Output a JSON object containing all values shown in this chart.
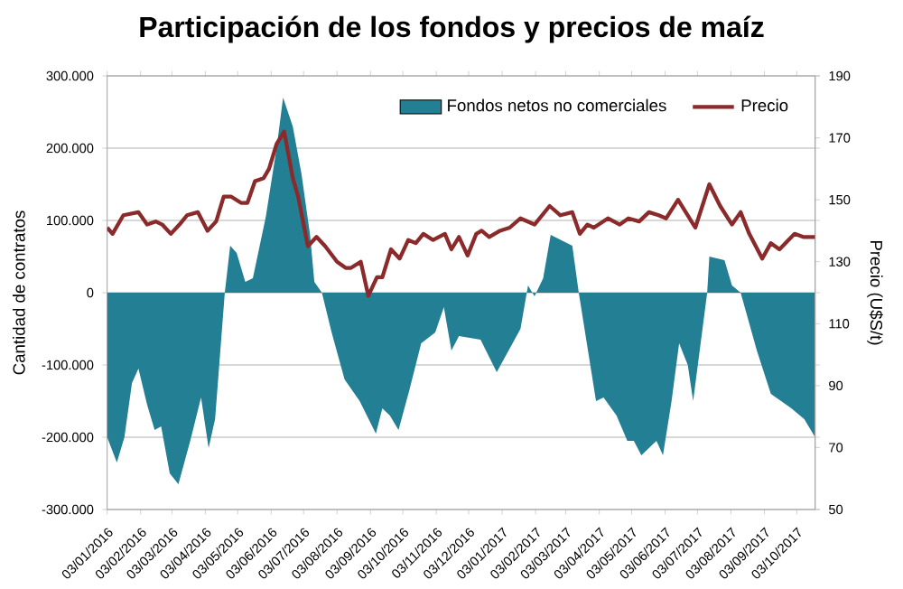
{
  "chart_data": {
    "type": "area",
    "title": "Participación de los fondos y precios de maíz",
    "ylabel": "Cantidad de contratos",
    "y2label": "Precio (U$S/t)",
    "xlim": [
      "2016-01-03",
      "2017-10-20"
    ],
    "xticks": [
      {
        "value": "2016-01-03",
        "label": "03/01/2016"
      },
      {
        "value": "2016-02-03",
        "label": "03/02/2016"
      },
      {
        "value": "2016-03-03",
        "label": "03/03/2016"
      },
      {
        "value": "2016-04-03",
        "label": "03/04/2016"
      },
      {
        "value": "2016-05-03",
        "label": "03/05/2016"
      },
      {
        "value": "2016-06-03",
        "label": "03/06/2016"
      },
      {
        "value": "2016-07-03",
        "label": "03/07/2016"
      },
      {
        "value": "2016-08-03",
        "label": "03/08/2016"
      },
      {
        "value": "2016-09-03",
        "label": "03/09/2016"
      },
      {
        "value": "2016-10-03",
        "label": "03/10/2016"
      },
      {
        "value": "2016-11-03",
        "label": "03/11/2016"
      },
      {
        "value": "2016-12-03",
        "label": "03/12/2016"
      },
      {
        "value": "2017-01-03",
        "label": "03/01/2017"
      },
      {
        "value": "2017-02-03",
        "label": "03/02/2017"
      },
      {
        "value": "2017-03-03",
        "label": "03/03/2017"
      },
      {
        "value": "2017-04-03",
        "label": "03/04/2017"
      },
      {
        "value": "2017-05-03",
        "label": "03/05/2017"
      },
      {
        "value": "2017-06-03",
        "label": "03/06/2017"
      },
      {
        "value": "2017-07-03",
        "label": "03/07/2017"
      },
      {
        "value": "2017-08-03",
        "label": "03/08/2017"
      },
      {
        "value": "2017-09-03",
        "label": "03/09/2017"
      },
      {
        "value": "2017-10-03",
        "label": "03/10/2017"
      }
    ],
    "ylim": [
      -300000,
      300000
    ],
    "yticks": [
      {
        "value": -300000,
        "label": "-300.000"
      },
      {
        "value": -200000,
        "label": "-200.000"
      },
      {
        "value": -100000,
        "label": "-100.000"
      },
      0,
      {
        "value": 100000,
        "label": "100.000"
      },
      {
        "value": 200000,
        "label": "200.000"
      },
      {
        "value": 300000,
        "label": "300.000"
      }
    ],
    "y2lim": [
      50,
      190
    ],
    "y2ticks": [
      50,
      70,
      90,
      110,
      130,
      150,
      170,
      190
    ],
    "grid": "y",
    "legend": "top right",
    "series": [
      {
        "name": "Fondos netos no comerciales",
        "color": "#237f94",
        "x": [
          "2016-01-03",
          "2016-01-12",
          "2016-01-19",
          "2016-01-26",
          "2016-02-01",
          "2016-02-09",
          "2016-02-16",
          "2016-02-22",
          "2016-03-01",
          "2016-03-09",
          "2016-03-20",
          "2016-03-30",
          "2016-04-06",
          "2016-04-12",
          "2016-04-21",
          "2016-04-26",
          "2016-05-02",
          "2016-05-10",
          "2016-05-17",
          "2016-05-29",
          "2016-06-08",
          "2016-06-14",
          "2016-06-23",
          "2016-07-01",
          "2016-07-09",
          "2016-07-13",
          "2016-07-20",
          "2016-07-29",
          "2016-08-10",
          "2016-08-24",
          "2016-09-08",
          "2016-09-14",
          "2016-09-21",
          "2016-09-29",
          "2016-10-09",
          "2016-10-20",
          "2016-11-02",
          "2016-11-10",
          "2016-11-17",
          "2016-11-24",
          "2016-12-14",
          "2016-12-29",
          "2017-01-20",
          "2017-01-27",
          "2017-02-02",
          "2017-02-10",
          "2017-02-17",
          "2017-03-09",
          "2017-03-15",
          "2017-03-31",
          "2017-04-07",
          "2017-04-19",
          "2017-04-29",
          "2017-05-05",
          "2017-05-12",
          "2017-05-26",
          "2017-06-01",
          "2017-06-09",
          "2017-06-16",
          "2017-06-24",
          "2017-06-29",
          "2017-07-12",
          "2017-07-14",
          "2017-07-28",
          "2017-08-04",
          "2017-08-12",
          "2017-08-27",
          "2017-09-09",
          "2017-09-28",
          "2017-10-10",
          "2017-10-20"
        ],
        "values": [
          -200000,
          -235000,
          -200000,
          -125000,
          -105000,
          -155000,
          -190000,
          -185000,
          -250000,
          -265000,
          -205000,
          -145000,
          -215000,
          -175000,
          0,
          65000,
          55000,
          15000,
          20000,
          105000,
          200000,
          270000,
          230000,
          165000,
          80000,
          15000,
          0,
          -55000,
          -120000,
          -150000,
          -195000,
          -160000,
          -170000,
          -190000,
          -135000,
          -70000,
          -55000,
          -20000,
          -80000,
          -60000,
          -65000,
          -110000,
          -50000,
          10000,
          -5000,
          20000,
          80000,
          65000,
          0,
          -150000,
          -145000,
          -170000,
          -205000,
          -205000,
          -225000,
          -205000,
          -225000,
          -150000,
          -70000,
          -100000,
          -150000,
          0,
          50000,
          45000,
          10000,
          0,
          -80000,
          -140000,
          -160000,
          -175000,
          -200000
        ]
      },
      {
        "name": "Precio",
        "type": "line",
        "axis": "y2",
        "color": "#8b2a2a",
        "x": [
          "2016-01-03",
          "2016-01-08",
          "2016-01-18",
          "2016-02-01",
          "2016-02-09",
          "2016-02-17",
          "2016-02-23",
          "2016-03-02",
          "2016-03-10",
          "2016-03-17",
          "2016-03-27",
          "2016-04-05",
          "2016-04-13",
          "2016-04-20",
          "2016-04-27",
          "2016-05-06",
          "2016-05-12",
          "2016-05-19",
          "2016-05-27",
          "2016-06-01",
          "2016-06-08",
          "2016-06-15",
          "2016-06-23",
          "2016-06-28",
          "2016-07-07",
          "2016-07-15",
          "2016-07-23",
          "2016-08-03",
          "2016-08-11",
          "2016-08-16",
          "2016-08-25",
          "2016-09-01",
          "2016-09-09",
          "2016-09-14",
          "2016-09-22",
          "2016-09-30",
          "2016-10-08",
          "2016-10-15",
          "2016-10-22",
          "2016-10-31",
          "2016-11-11",
          "2016-11-17",
          "2016-11-24",
          "2016-12-02",
          "2016-12-10",
          "2016-12-15",
          "2016-12-22",
          "2017-01-01",
          "2017-01-10",
          "2017-01-20",
          "2017-02-02",
          "2017-02-16",
          "2017-02-26",
          "2017-03-09",
          "2017-03-16",
          "2017-03-23",
          "2017-03-29",
          "2017-04-11",
          "2017-04-22",
          "2017-04-30",
          "2017-05-10",
          "2017-05-19",
          "2017-05-28",
          "2017-06-04",
          "2017-06-15",
          "2017-07-01",
          "2017-07-14",
          "2017-07-24",
          "2017-08-04",
          "2017-08-12",
          "2017-08-20",
          "2017-09-01",
          "2017-09-09",
          "2017-09-17",
          "2017-10-01",
          "2017-10-09",
          "2017-10-20"
        ],
        "values": [
          141,
          139,
          145,
          146,
          142,
          143,
          142,
          139,
          142,
          145,
          146,
          140,
          143,
          151,
          151,
          149,
          149,
          156,
          157,
          160,
          168,
          172,
          157,
          151,
          135,
          138,
          135,
          130,
          128,
          128,
          130,
          119,
          125,
          125,
          134,
          131,
          137,
          136,
          139,
          137,
          139,
          134,
          138,
          132,
          139,
          140,
          138,
          140,
          141,
          144,
          142,
          148,
          145,
          146,
          139,
          142,
          141,
          144,
          142,
          144,
          143,
          146,
          145,
          144,
          150,
          141,
          155,
          148,
          142,
          146,
          139,
          131,
          136,
          134,
          139,
          138,
          138
        ]
      }
    ]
  }
}
